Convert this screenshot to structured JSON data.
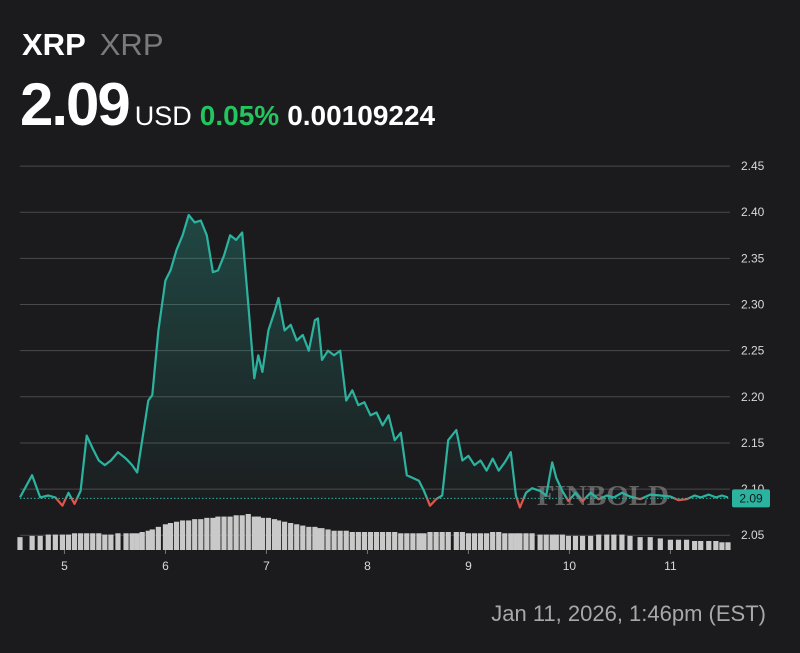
{
  "header": {
    "symbol": "XRP",
    "name": "XRP",
    "price": 2.09,
    "currency": "USD",
    "change": "0.05%",
    "btc_price": "0.00109224"
  },
  "chart_data": {
    "type": "line",
    "x": [
      4.56,
      4.68,
      4.76,
      4.84,
      4.91,
      4.98,
      5.04,
      5.1,
      5.16,
      5.22,
      5.28,
      5.34,
      5.4,
      5.46,
      5.53,
      5.61,
      5.67,
      5.72,
      5.77,
      5.83,
      5.87,
      5.93,
      6.0,
      6.05,
      6.11,
      6.17,
      6.23,
      6.29,
      6.35,
      6.41,
      6.47,
      6.52,
      6.58,
      6.64,
      6.7,
      6.76,
      6.82,
      6.88,
      6.92,
      6.96,
      7.02,
      7.08,
      7.12,
      7.18,
      7.24,
      7.3,
      7.36,
      7.42,
      7.48,
      7.51,
      7.55,
      7.61,
      7.67,
      7.73,
      7.79,
      7.85,
      7.91,
      7.97,
      8.03,
      8.09,
      8.15,
      8.21,
      8.27,
      8.33,
      8.39,
      8.45,
      8.51,
      8.56,
      8.62,
      8.68,
      8.74,
      8.8,
      8.88,
      8.94,
      9.0,
      9.06,
      9.12,
      9.18,
      9.24,
      9.3,
      9.36,
      9.42,
      9.47,
      9.51,
      9.57,
      9.63,
      9.71,
      9.77,
      9.83,
      9.87,
      9.93,
      9.99,
      10.06,
      10.13,
      10.21,
      10.29,
      10.37,
      10.44,
      10.52,
      10.6,
      10.7,
      10.8,
      10.9,
      11.0,
      11.08,
      11.16,
      11.24,
      11.3,
      11.38,
      11.45,
      11.51,
      11.57
    ],
    "series": [
      {
        "color": "#2bb3a0",
        "values": [
          2.091,
          2.115,
          2.091,
          2.093,
          2.091,
          2.082,
          2.096,
          2.084,
          2.098,
          2.158,
          2.144,
          2.131,
          2.126,
          2.131,
          2.14,
          2.133,
          2.126,
          2.118,
          2.153,
          2.196,
          2.202,
          2.272,
          2.326,
          2.337,
          2.359,
          2.375,
          2.397,
          2.389,
          2.391,
          2.375,
          2.335,
          2.337,
          2.353,
          2.375,
          2.37,
          2.378,
          2.3,
          2.22,
          2.245,
          2.227,
          2.272,
          2.292,
          2.307,
          2.272,
          2.278,
          2.261,
          2.267,
          2.25,
          2.283,
          2.285,
          2.24,
          2.25,
          2.245,
          2.25,
          2.196,
          2.207,
          2.191,
          2.194,
          2.18,
          2.183,
          2.169,
          2.18,
          2.153,
          2.161,
          2.115,
          2.112,
          2.109,
          2.098,
          2.082,
          2.089,
          2.093,
          2.153,
          2.164,
          2.131,
          2.136,
          2.126,
          2.131,
          2.12,
          2.133,
          2.12,
          2.129,
          2.14,
          2.093,
          2.08,
          2.096,
          2.101,
          2.098,
          2.093,
          2.129,
          2.112,
          2.098,
          2.087,
          2.096,
          2.087,
          2.096,
          2.089,
          2.093,
          2.091,
          2.096,
          2.092,
          2.089,
          2.094,
          2.093,
          2.092,
          2.088,
          2.089,
          2.093,
          2.091,
          2.094,
          2.091,
          2.093,
          2.091
        ]
      }
    ],
    "volume": [
      10,
      11,
      11,
      12,
      12,
      12,
      12,
      13,
      13,
      13,
      13,
      13,
      12,
      12,
      13,
      13,
      13,
      13,
      14,
      15,
      16,
      18,
      20,
      21,
      22,
      23,
      23,
      24,
      24,
      25,
      25,
      26,
      26,
      26,
      27,
      27,
      28,
      26,
      26,
      25,
      25,
      24,
      23,
      22,
      21,
      20,
      19,
      18,
      18,
      17,
      17,
      16,
      15,
      15,
      15,
      14,
      14,
      14,
      14,
      14,
      14,
      14,
      14,
      13,
      13,
      13,
      13,
      13,
      14,
      14,
      14,
      14,
      14,
      14,
      13,
      13,
      13,
      13,
      14,
      14,
      13,
      13,
      13,
      13,
      13,
      13,
      12,
      12,
      12,
      12,
      12,
      11,
      11,
      11,
      11,
      12,
      12,
      12,
      12,
      11,
      10,
      10,
      9,
      8,
      8,
      8,
      7,
      7,
      7,
      7,
      6,
      6
    ],
    "volume_color": "#c9c9c9",
    "down_color": "#e5534b",
    "reference": 2.09,
    "xlim": [
      4.56,
      11.59
    ],
    "xticks": [
      5,
      6,
      7,
      8,
      9,
      10,
      11
    ],
    "ylim": [
      2.034,
      2.462
    ],
    "yticks": [
      2.05,
      {
        "value": 2.1,
        "label": "2.10"
      },
      2.15,
      {
        "value": 2.2,
        "label": "2.20"
      },
      2.25,
      {
        "value": 2.3,
        "label": "2.30"
      },
      2.35,
      {
        "value": 2.4,
        "label": "2.40"
      },
      2.45
    ],
    "grid": true,
    "watermark": "FINBOLD",
    "timestamp": "Jan 11, 2026, 1:46pm (EST)"
  }
}
